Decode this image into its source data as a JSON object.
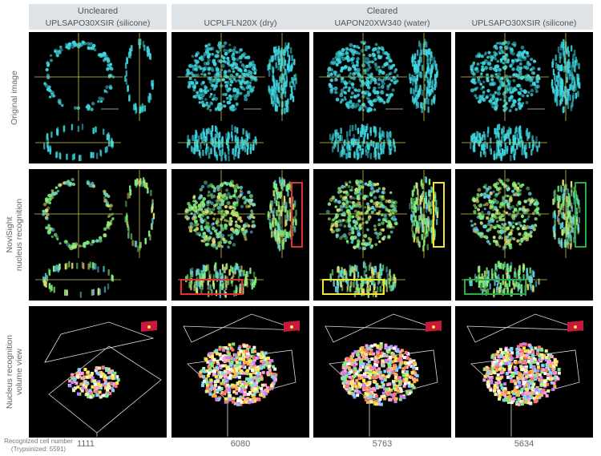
{
  "header": {
    "uncleared": {
      "title": "Uncleared",
      "objective": "UPLSAPO30XSIR (silicone)"
    },
    "cleared": {
      "title": "Cleared",
      "objectives": [
        "UCPLFLN20X (dry)",
        "UAPON20XW340 (water)",
        "UPLSAPO30XSIR (silicone)"
      ]
    }
  },
  "rows": [
    {
      "label": "Original image"
    },
    {
      "label_lines": [
        "NoviSight",
        "nucleus recognition"
      ]
    },
    {
      "label_lines": [
        "Nucleus recognition",
        "volume view"
      ]
    }
  ],
  "footer": {
    "label_lines": [
      "Recognized cell number",
      "(Trypsinized: 5591)"
    ],
    "counts": [
      "1111",
      "6080",
      "5763",
      "5634"
    ]
  },
  "colors": {
    "header_bg": "#dde3e6",
    "nuclei": "#3fd6e0",
    "crosshair": "#c8c84a",
    "highlight": [
      "#e53030",
      "#f2e630",
      "#22b040"
    ]
  }
}
